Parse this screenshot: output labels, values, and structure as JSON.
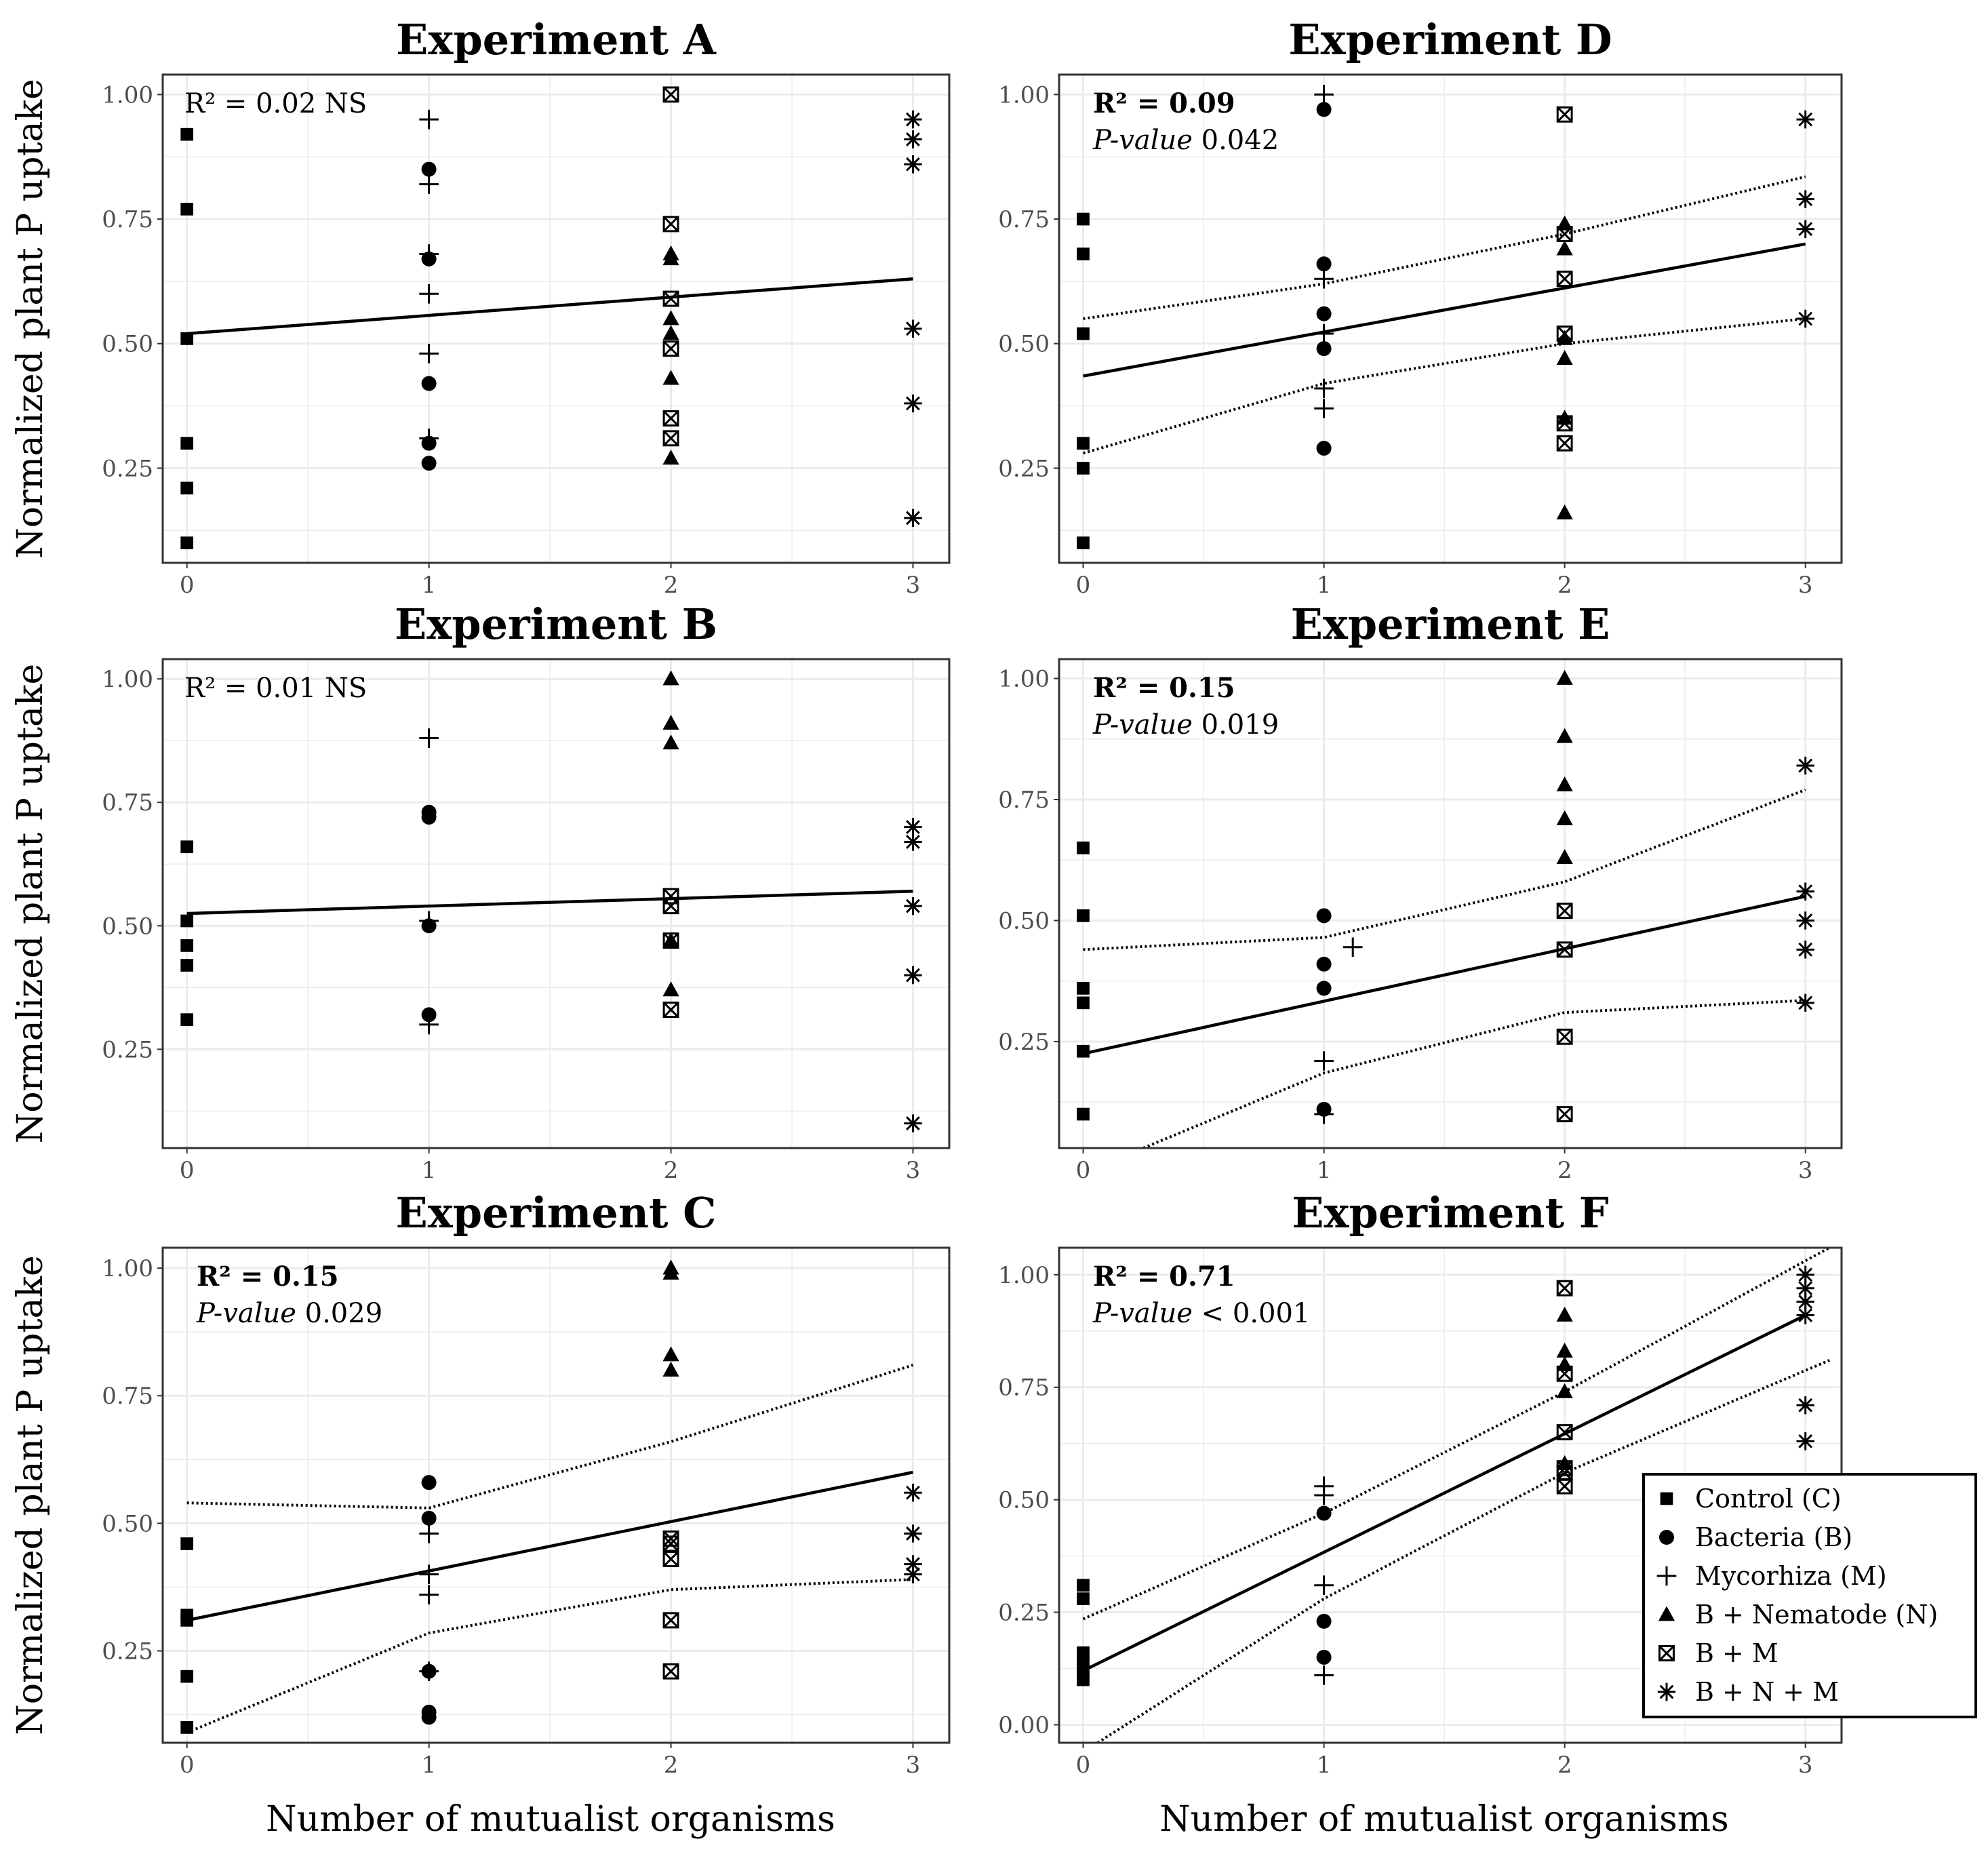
{
  "figure": {
    "xlabel": "Number of mutualist organisms",
    "ylabel": "Normalized plant P uptake"
  },
  "legend": [
    {
      "key": "C",
      "label": "Control (C)"
    },
    {
      "key": "B",
      "label": "Bacteria (B)"
    },
    {
      "key": "M",
      "label": "Mycorhiza (M)"
    },
    {
      "key": "BN",
      "label": "B + Nematode (N)"
    },
    {
      "key": "BM",
      "label": "B + M"
    },
    {
      "key": "BNM",
      "label": "B + N + M"
    }
  ],
  "chart_data": [
    {
      "type": "scatter",
      "title": "Experiment A",
      "xlabel": "",
      "ylabel": "Normalized plant P uptake",
      "xlim": [
        -0.1,
        3.15
      ],
      "ylim": [
        0.06,
        1.04
      ],
      "xticks": [
        "0",
        "1",
        "2",
        "3"
      ],
      "yticks": [
        "0.25",
        "0.50",
        "0.75",
        "1.00"
      ],
      "stat_line1": "R² = 0.02 NS",
      "stat_line1_bold": false,
      "stat_pvalue_label": "",
      "stat_pvalue_value": "",
      "fit": {
        "x": [
          0,
          3
        ],
        "y": [
          0.52,
          0.63
        ]
      },
      "ci_upper": [],
      "ci_lower": [],
      "series": [
        {
          "key": "C",
          "x": [
            0,
            0,
            0,
            0,
            0,
            0
          ],
          "y": [
            0.92,
            0.77,
            0.51,
            0.3,
            0.21,
            0.1
          ]
        },
        {
          "key": "B",
          "x": [
            1,
            1,
            1,
            1,
            1
          ],
          "y": [
            0.85,
            0.67,
            0.42,
            0.3,
            0.26
          ]
        },
        {
          "key": "M",
          "x": [
            1,
            1,
            1,
            1,
            1,
            1
          ],
          "y": [
            0.95,
            0.82,
            0.68,
            0.6,
            0.48,
            0.31
          ]
        },
        {
          "key": "BN",
          "x": [
            2,
            2,
            2,
            2,
            2,
            2
          ],
          "y": [
            0.68,
            0.67,
            0.55,
            0.52,
            0.43,
            0.27
          ]
        },
        {
          "key": "BM",
          "x": [
            2,
            2,
            2,
            2,
            2,
            2
          ],
          "y": [
            1.0,
            0.74,
            0.59,
            0.49,
            0.35,
            0.31
          ]
        },
        {
          "key": "BNM",
          "x": [
            3,
            3,
            3,
            3,
            3,
            3
          ],
          "y": [
            0.95,
            0.91,
            0.86,
            0.53,
            0.38,
            0.15
          ]
        }
      ]
    },
    {
      "type": "scatter",
      "title": "Experiment D",
      "xlabel": "",
      "ylabel": "",
      "xlim": [
        -0.1,
        3.15
      ],
      "ylim": [
        0.06,
        1.04
      ],
      "xticks": [
        "0",
        "1",
        "2",
        "3"
      ],
      "yticks": [
        "0.25",
        "0.50",
        "0.75",
        "1.00"
      ],
      "stat_line1": "R² = 0.09",
      "stat_line1_bold": true,
      "stat_pvalue_label": "P-value",
      "stat_pvalue_value": " 0.042",
      "fit": {
        "x": [
          0,
          3
        ],
        "y": [
          0.435,
          0.7
        ]
      },
      "ci_upper": [
        [
          0,
          0.55
        ],
        [
          1,
          0.62
        ],
        [
          2,
          0.72
        ],
        [
          3,
          0.835
        ]
      ],
      "ci_lower": [
        [
          0,
          0.28
        ],
        [
          1,
          0.42
        ],
        [
          2,
          0.5
        ],
        [
          3,
          0.55
        ]
      ],
      "series": [
        {
          "key": "C",
          "x": [
            0,
            0,
            0,
            0,
            0,
            0
          ],
          "y": [
            0.75,
            0.68,
            0.52,
            0.3,
            0.25,
            0.1
          ]
        },
        {
          "key": "B",
          "x": [
            1,
            1,
            1,
            1,
            1
          ],
          "y": [
            0.97,
            0.66,
            0.56,
            0.49,
            0.29
          ]
        },
        {
          "key": "M",
          "x": [
            1,
            1,
            1,
            1,
            1
          ],
          "y": [
            1.0,
            0.63,
            0.52,
            0.41,
            0.37
          ]
        },
        {
          "key": "BN",
          "x": [
            2,
            2,
            2,
            2,
            2,
            2
          ],
          "y": [
            0.74,
            0.69,
            0.51,
            0.47,
            0.35,
            0.16
          ]
        },
        {
          "key": "BM",
          "x": [
            2,
            2,
            2,
            2,
            2,
            2
          ],
          "y": [
            0.96,
            0.72,
            0.63,
            0.52,
            0.34,
            0.3
          ]
        },
        {
          "key": "BNM",
          "x": [
            3,
            3,
            3,
            3
          ],
          "y": [
            0.95,
            0.79,
            0.73,
            0.55
          ]
        }
      ]
    },
    {
      "type": "scatter",
      "title": "Experiment B",
      "xlabel": "",
      "ylabel": "Normalized plant P uptake",
      "xlim": [
        -0.1,
        3.15
      ],
      "ylim": [
        0.05,
        1.04
      ],
      "xticks": [
        "0",
        "1",
        "2",
        "3"
      ],
      "yticks": [
        "0.25",
        "0.50",
        "0.75",
        "1.00"
      ],
      "stat_line1": "R² = 0.01 NS",
      "stat_line1_bold": false,
      "stat_pvalue_label": "",
      "stat_pvalue_value": "",
      "fit": {
        "x": [
          0,
          3
        ],
        "y": [
          0.525,
          0.57
        ]
      },
      "ci_upper": [],
      "ci_lower": [],
      "series": [
        {
          "key": "C",
          "x": [
            0,
            0,
            0,
            0,
            0
          ],
          "y": [
            0.66,
            0.51,
            0.46,
            0.42,
            0.31
          ]
        },
        {
          "key": "B",
          "x": [
            1,
            1,
            1,
            1
          ],
          "y": [
            0.73,
            0.72,
            0.5,
            0.32
          ]
        },
        {
          "key": "M",
          "x": [
            1,
            1,
            1
          ],
          "y": [
            0.88,
            0.51,
            0.3
          ]
        },
        {
          "key": "BN",
          "x": [
            2,
            2,
            2,
            2,
            2
          ],
          "y": [
            1.0,
            0.91,
            0.87,
            0.47,
            0.37
          ]
        },
        {
          "key": "BM",
          "x": [
            2,
            2,
            2,
            2
          ],
          "y": [
            0.56,
            0.54,
            0.47,
            0.33
          ]
        },
        {
          "key": "BNM",
          "x": [
            3,
            3,
            3,
            3,
            3
          ],
          "y": [
            0.7,
            0.67,
            0.54,
            0.4,
            0.1
          ]
        }
      ]
    },
    {
      "type": "scatter",
      "title": "Experiment E",
      "xlabel": "",
      "ylabel": "",
      "xlim": [
        -0.1,
        3.15
      ],
      "ylim": [
        0.03,
        1.04
      ],
      "xticks": [
        "0",
        "1",
        "2",
        "3"
      ],
      "yticks": [
        "0.25",
        "0.50",
        "0.75",
        "1.00"
      ],
      "stat_line1": "R² = 0.15",
      "stat_line1_bold": true,
      "stat_pvalue_label": "P-value",
      "stat_pvalue_value": " 0.019",
      "fit": {
        "x": [
          0,
          3
        ],
        "y": [
          0.225,
          0.55
        ]
      },
      "ci_upper": [
        [
          0,
          0.44
        ],
        [
          1,
          0.465
        ],
        [
          2,
          0.58
        ],
        [
          3,
          0.77
        ]
      ],
      "ci_lower": [
        [
          0.25,
          0.03
        ],
        [
          1,
          0.185
        ],
        [
          2,
          0.31
        ],
        [
          3,
          0.335
        ]
      ],
      "series": [
        {
          "key": "C",
          "x": [
            0,
            0,
            0,
            0,
            0,
            0
          ],
          "y": [
            0.65,
            0.51,
            0.36,
            0.33,
            0.23,
            0.1
          ]
        },
        {
          "key": "B",
          "x": [
            1,
            1,
            1,
            1
          ],
          "y": [
            0.51,
            0.41,
            0.36,
            0.11
          ]
        },
        {
          "key": "M",
          "x": [
            1.12,
            1,
            1
          ],
          "y": [
            0.445,
            0.21,
            0.1
          ]
        },
        {
          "key": "BN",
          "x": [
            2,
            2,
            2,
            2,
            2
          ],
          "y": [
            1.0,
            0.88,
            0.78,
            0.71,
            0.63
          ]
        },
        {
          "key": "BM",
          "x": [
            2,
            2,
            2,
            2
          ],
          "y": [
            0.52,
            0.44,
            0.26,
            0.1
          ]
        },
        {
          "key": "BNM",
          "x": [
            3,
            3,
            3,
            3,
            3
          ],
          "y": [
            0.82,
            0.56,
            0.5,
            0.44,
            0.33
          ]
        }
      ]
    },
    {
      "type": "scatter",
      "title": "Experiment C",
      "xlabel": "Number of mutualist organisms",
      "ylabel": "Normalized plant P uptake",
      "xlim": [
        -0.1,
        3.15
      ],
      "ylim": [
        0.07,
        1.04
      ],
      "xticks": [
        "0",
        "1",
        "2",
        "3"
      ],
      "yticks": [
        "0.25",
        "0.50",
        "0.75",
        "1.00"
      ],
      "stat_line1": "R² = 0.15",
      "stat_line1_bold": true,
      "stat_pvalue_label": "P-value",
      "stat_pvalue_value": " 0.029",
      "fit": {
        "x": [
          0,
          3
        ],
        "y": [
          0.31,
          0.6
        ]
      },
      "ci_upper": [
        [
          0,
          0.54
        ],
        [
          1,
          0.53
        ],
        [
          2,
          0.66
        ],
        [
          3,
          0.81
        ]
      ],
      "ci_lower": [
        [
          0,
          0.09
        ],
        [
          1,
          0.285
        ],
        [
          2,
          0.37
        ],
        [
          3,
          0.39
        ]
      ],
      "series": [
        {
          "key": "C",
          "x": [
            0,
            0,
            0,
            0,
            0
          ],
          "y": [
            0.46,
            0.32,
            0.31,
            0.2,
            0.1
          ]
        },
        {
          "key": "B",
          "x": [
            1,
            1,
            1,
            1,
            1
          ],
          "y": [
            0.58,
            0.51,
            0.21,
            0.13,
            0.12
          ]
        },
        {
          "key": "M",
          "x": [
            1,
            1,
            1,
            1
          ],
          "y": [
            0.48,
            0.4,
            0.36,
            0.21
          ]
        },
        {
          "key": "BN",
          "x": [
            2,
            2,
            2,
            2
          ],
          "y": [
            1.0,
            0.99,
            0.83,
            0.8
          ]
        },
        {
          "key": "BM",
          "x": [
            2,
            2,
            2,
            2,
            2
          ],
          "y": [
            0.47,
            0.43,
            0.31,
            0.21,
            0.46
          ]
        },
        {
          "key": "BNM",
          "x": [
            3,
            3,
            3,
            3
          ],
          "y": [
            0.56,
            0.48,
            0.42,
            0.4
          ]
        }
      ]
    },
    {
      "type": "scatter",
      "title": "Experiment F",
      "xlabel": "Number of mutualist organisms",
      "ylabel": "",
      "xlim": [
        -0.1,
        3.15
      ],
      "ylim": [
        -0.04,
        1.06
      ],
      "xticks": [
        "0",
        "1",
        "2",
        "3"
      ],
      "yticks": [
        "0.00",
        "0.25",
        "0.50",
        "0.75",
        "1.00"
      ],
      "stat_line1": "R² = 0.71",
      "stat_line1_bold": true,
      "stat_pvalue_label": "P-value",
      "stat_pvalue_value": " < 0.001",
      "fit": {
        "x": [
          0,
          3
        ],
        "y": [
          0.12,
          0.91
        ]
      },
      "ci_upper": [
        [
          0,
          0.235
        ],
        [
          1,
          0.47
        ],
        [
          2,
          0.74
        ],
        [
          3.1,
          1.06
        ]
      ],
      "ci_lower": [
        [
          0.06,
          -0.04
        ],
        [
          1,
          0.28
        ],
        [
          2,
          0.56
        ],
        [
          3.1,
          0.81
        ]
      ],
      "series": [
        {
          "key": "C",
          "x": [
            0,
            0,
            0,
            0,
            0,
            0
          ],
          "y": [
            0.31,
            0.28,
            0.16,
            0.14,
            0.12,
            0.1
          ]
        },
        {
          "key": "B",
          "x": [
            1,
            1,
            1
          ],
          "y": [
            0.47,
            0.23,
            0.15
          ]
        },
        {
          "key": "M",
          "x": [
            1,
            1,
            1,
            1
          ],
          "y": [
            0.53,
            0.51,
            0.31,
            0.11
          ]
        },
        {
          "key": "BN",
          "x": [
            2,
            2,
            2,
            2,
            2
          ],
          "y": [
            0.91,
            0.83,
            0.8,
            0.74,
            0.58
          ]
        },
        {
          "key": "BM",
          "x": [
            2,
            2,
            2,
            2,
            2,
            2
          ],
          "y": [
            0.97,
            0.78,
            0.65,
            0.56,
            0.53,
            0.57
          ]
        },
        {
          "key": "BNM",
          "x": [
            3,
            3,
            3,
            3,
            3,
            3
          ],
          "y": [
            1.0,
            0.97,
            0.94,
            0.91,
            0.71,
            0.63
          ]
        }
      ]
    }
  ]
}
